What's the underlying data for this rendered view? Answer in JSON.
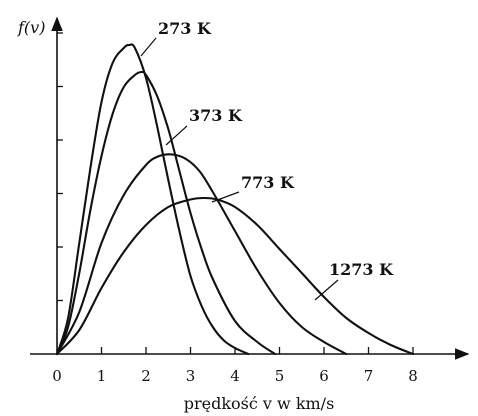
{
  "chart_data": {
    "type": "line",
    "ylabel": "f(v)",
    "xlabel": "prędkość v w km/s",
    "xlim": [
      0,
      8
    ],
    "x_ticks": [
      "0",
      "1",
      "2",
      "3",
      "4",
      "5",
      "6",
      "7",
      "8"
    ],
    "y_tick_count": 6,
    "grid": false,
    "legend": "labels placed next to curves",
    "series": [
      {
        "name": "273 K",
        "x": [
          0,
          0.25,
          0.5,
          0.75,
          1.0,
          1.25,
          1.5,
          1.62,
          1.75,
          2.0,
          2.25,
          2.5,
          2.75,
          3.0,
          3.25,
          3.5,
          3.75,
          4.0,
          4.3
        ],
        "y": [
          0,
          0.12,
          0.37,
          0.62,
          0.84,
          0.97,
          1.02,
          1.03,
          1.02,
          0.92,
          0.76,
          0.58,
          0.41,
          0.26,
          0.16,
          0.09,
          0.045,
          0.02,
          0.0
        ]
      },
      {
        "name": "373 K",
        "x": [
          0,
          0.25,
          0.5,
          0.75,
          1.0,
          1.25,
          1.5,
          1.75,
          1.9,
          2.0,
          2.25,
          2.5,
          2.75,
          3.0,
          3.25,
          3.5,
          4.0,
          4.5,
          4.9
        ],
        "y": [
          0,
          0.09,
          0.27,
          0.48,
          0.66,
          0.8,
          0.89,
          0.93,
          0.94,
          0.93,
          0.86,
          0.75,
          0.61,
          0.47,
          0.35,
          0.25,
          0.11,
          0.04,
          0.0
        ]
      },
      {
        "name": "773 K",
        "x": [
          0,
          0.5,
          1.0,
          1.5,
          2.0,
          2.3,
          2.6,
          2.9,
          3.2,
          3.5,
          4.0,
          4.5,
          5.0,
          5.5,
          6.0,
          6.5
        ],
        "y": [
          0,
          0.14,
          0.37,
          0.53,
          0.63,
          0.66,
          0.665,
          0.65,
          0.61,
          0.54,
          0.41,
          0.28,
          0.17,
          0.09,
          0.04,
          0.0
        ]
      },
      {
        "name": "1273 K",
        "x": [
          0,
          0.5,
          1.0,
          1.5,
          2.0,
          2.5,
          3.0,
          3.3,
          3.6,
          4.0,
          4.5,
          5.0,
          5.5,
          6.0,
          6.5,
          7.0,
          7.5,
          8.0
        ],
        "y": [
          0,
          0.08,
          0.22,
          0.34,
          0.43,
          0.49,
          0.515,
          0.52,
          0.515,
          0.49,
          0.43,
          0.35,
          0.27,
          0.19,
          0.12,
          0.07,
          0.03,
          0.0
        ]
      }
    ]
  }
}
